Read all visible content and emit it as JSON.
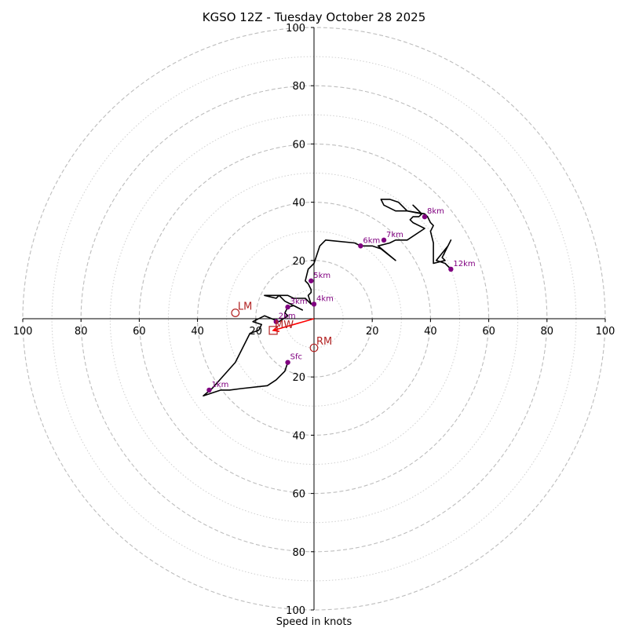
{
  "chart_data": {
    "type": "scatter",
    "subtype": "hodograph",
    "title": "KGSO 12Z - Tuesday October 28 2025",
    "xlabel": "Speed in knots",
    "ylabel": "",
    "xlim": [
      -100,
      100
    ],
    "ylim": [
      -100,
      100
    ],
    "rings_major": [
      20,
      40,
      60,
      80,
      100
    ],
    "rings_minor": [
      10,
      30,
      50,
      70,
      90
    ],
    "x_tick_labels": [
      "100",
      "80",
      "60",
      "40",
      "20",
      "",
      "20",
      "40",
      "60",
      "80",
      "100"
    ],
    "x_tick_values": [
      -100,
      -80,
      -60,
      -40,
      -20,
      0,
      20,
      40,
      60,
      80,
      100
    ],
    "y_tick_labels": [
      "100",
      "80",
      "60",
      "40",
      "20",
      "20",
      "40",
      "60",
      "80",
      "100"
    ],
    "y_tick_values": [
      100,
      80,
      60,
      40,
      20,
      -20,
      -40,
      -60,
      -80,
      -100
    ],
    "trace": [
      [
        -9,
        -15
      ],
      [
        -10,
        -18
      ],
      [
        -13,
        -21
      ],
      [
        -16,
        -23
      ],
      [
        -25,
        -24
      ],
      [
        -29,
        -24.5
      ],
      [
        -32,
        -24.5
      ],
      [
        -38,
        -26.5
      ],
      [
        -35,
        -24
      ],
      [
        -27,
        -15
      ],
      [
        -22,
        -5
      ],
      [
        -19,
        -4
      ],
      [
        -18,
        -2
      ],
      [
        -21,
        -1
      ],
      [
        -17,
        1
      ],
      [
        -12,
        -1
      ],
      [
        -9,
        1
      ],
      [
        -10,
        2
      ],
      [
        -9,
        4
      ],
      [
        -7,
        4.5
      ],
      [
        -4,
        3
      ],
      [
        -8,
        5
      ],
      [
        -10,
        6
      ],
      [
        -12,
        8
      ],
      [
        -13,
        7
      ],
      [
        -17,
        8
      ],
      [
        -13,
        8
      ],
      [
        -9,
        8
      ],
      [
        -7,
        7
      ],
      [
        -3,
        7
      ],
      [
        -1,
        5
      ],
      [
        -2,
        8
      ],
      [
        -1,
        9
      ],
      [
        -1,
        10
      ],
      [
        -2,
        12
      ],
      [
        -3,
        13
      ],
      [
        -2,
        17
      ],
      [
        0,
        19
      ],
      [
        1,
        22
      ],
      [
        2,
        25
      ],
      [
        4,
        27
      ],
      [
        14,
        26
      ],
      [
        16,
        25
      ],
      [
        20,
        25
      ],
      [
        23,
        24
      ],
      [
        28,
        20
      ],
      [
        22,
        25
      ],
      [
        26,
        26
      ],
      [
        28,
        27
      ],
      [
        32,
        27
      ],
      [
        38,
        31
      ],
      [
        36,
        32
      ],
      [
        34,
        33
      ],
      [
        33,
        34
      ],
      [
        34,
        35
      ],
      [
        36,
        35
      ],
      [
        37,
        36
      ],
      [
        36,
        37
      ],
      [
        34,
        39
      ],
      [
        35,
        38
      ],
      [
        37,
        36
      ],
      [
        32,
        37
      ],
      [
        29,
        40
      ],
      [
        26,
        41
      ],
      [
        24,
        41
      ],
      [
        23,
        41
      ],
      [
        24,
        39
      ],
      [
        28,
        37
      ],
      [
        32,
        37
      ],
      [
        38,
        36
      ],
      [
        39,
        35
      ],
      [
        40,
        33
      ],
      [
        41,
        32
      ],
      [
        40,
        30
      ],
      [
        41,
        26
      ],
      [
        41,
        19
      ],
      [
        45,
        20
      ],
      [
        44,
        21
      ],
      [
        47,
        27
      ],
      [
        46,
        25
      ],
      [
        42,
        20
      ],
      [
        45,
        19
      ],
      [
        47,
        17
      ]
    ],
    "height_points": [
      {
        "label": "Sfc",
        "x": -9,
        "y": -15
      },
      {
        "label": "1km",
        "x": -36,
        "y": -24.5
      },
      {
        "label": "2km",
        "x": -13,
        "y": -1
      },
      {
        "label": "3km",
        "x": -9,
        "y": 4
      },
      {
        "label": "4km",
        "x": 0,
        "y": 5
      },
      {
        "label": "5km",
        "x": -1,
        "y": 13
      },
      {
        "label": "6km",
        "x": 16,
        "y": 25
      },
      {
        "label": "7km",
        "x": 24,
        "y": 27
      },
      {
        "label": "8km",
        "x": 38,
        "y": 35
      },
      {
        "label": "12km",
        "x": 47,
        "y": 17
      }
    ],
    "storm_motion": {
      "RM": {
        "label": "RM",
        "x": 0,
        "y": -10
      },
      "LM": {
        "label": "LM",
        "x": -27,
        "y": 2
      },
      "MW": {
        "label": "MW",
        "x": -14,
        "y": -4
      }
    },
    "shear_vector": {
      "from": [
        0,
        0
      ],
      "to": [
        -14,
        -4
      ]
    }
  },
  "colors": {
    "trace": "#000000",
    "height_points": "#800080",
    "storm_motion": "#b22222",
    "shear": "#ff0000"
  }
}
